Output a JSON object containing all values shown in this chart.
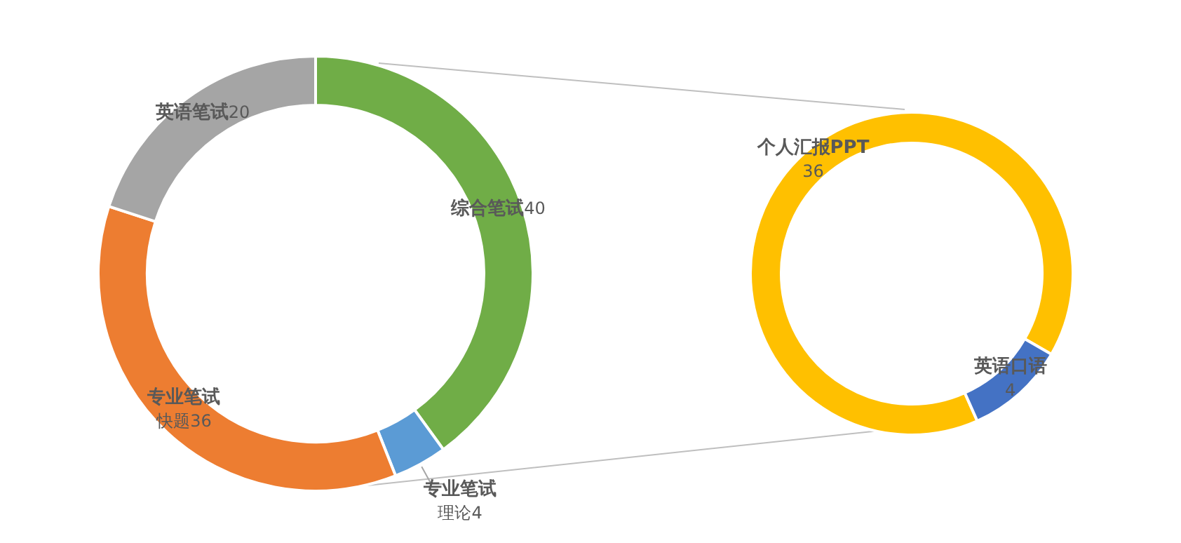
{
  "chart_data": [
    {
      "type": "donut",
      "categories": [
        "综合笔试",
        "专业笔试理论",
        "专业笔试快题",
        "英语笔试"
      ],
      "values": [
        40,
        4,
        36,
        20
      ],
      "colors": [
        "#70ad47",
        "#5b9bd5",
        "#ed7d31",
        "#a5a5a5"
      ],
      "data_labels": true
    },
    {
      "type": "donut",
      "categories": [
        "个人汇报PPT",
        "英语口语"
      ],
      "values": [
        36,
        4
      ],
      "colors": [
        "#ffc000",
        "#4472c4"
      ],
      "data_labels": true
    }
  ]
}
